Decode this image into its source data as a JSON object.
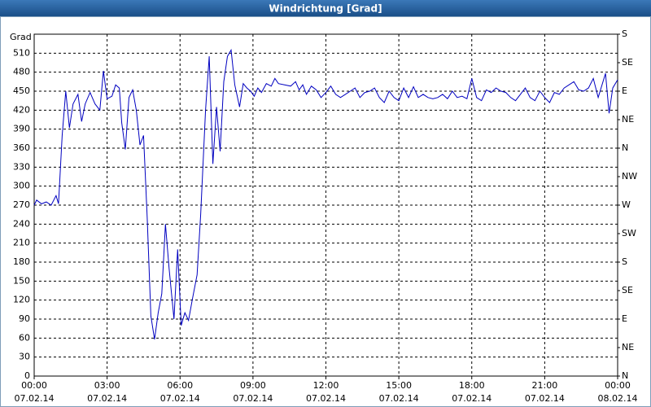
{
  "chart_data": {
    "type": "line",
    "title": "Windrichtung [Grad]",
    "y_label": "Grad",
    "x": [
      0,
      0.1,
      0.3,
      0.5,
      0.7,
      0.9,
      1.0,
      1.15,
      1.3,
      1.45,
      1.6,
      1.8,
      1.95,
      2.1,
      2.3,
      2.5,
      2.7,
      2.85,
      3.0,
      3.2,
      3.35,
      3.5,
      3.6,
      3.75,
      3.9,
      4.05,
      4.2,
      4.35,
      4.5,
      4.65,
      4.8,
      4.95,
      5.1,
      5.25,
      5.4,
      5.55,
      5.75,
      5.9,
      6.05,
      6.2,
      6.35,
      6.5,
      6.7,
      6.85,
      7.05,
      7.2,
      7.35,
      7.5,
      7.65,
      7.8,
      7.95,
      8.1,
      8.25,
      8.45,
      8.6,
      8.75,
      8.9,
      9.05,
      9.2,
      9.35,
      9.55,
      9.75,
      9.9,
      10.05,
      10.3,
      10.55,
      10.75,
      10.9,
      11.05,
      11.2,
      11.4,
      11.6,
      11.8,
      12.0,
      12.2,
      12.4,
      12.6,
      12.8,
      13.0,
      13.2,
      13.4,
      13.6,
      13.8,
      14.0,
      14.2,
      14.4,
      14.6,
      14.8,
      15.0,
      15.2,
      15.4,
      15.6,
      15.8,
      16.0,
      16.2,
      16.4,
      16.6,
      16.8,
      17.0,
      17.2,
      17.4,
      17.6,
      17.8,
      18.0,
      18.2,
      18.4,
      18.6,
      18.8,
      19.0,
      19.2,
      19.4,
      19.6,
      19.8,
      20.0,
      20.2,
      20.4,
      20.6,
      20.8,
      21.0,
      21.2,
      21.4,
      21.6,
      21.8,
      22.0,
      22.2,
      22.4,
      22.6,
      22.8,
      23.0,
      23.2,
      23.5,
      23.65,
      23.8,
      24.0
    ],
    "series": [
      {
        "name": "Windrichtung",
        "color": "#0000c0",
        "values": [
          270,
          278,
          272,
          275,
          270,
          285,
          272,
          380,
          450,
          392,
          430,
          445,
          402,
          430,
          448,
          430,
          420,
          482,
          438,
          442,
          460,
          455,
          400,
          358,
          440,
          452,
          420,
          365,
          380,
          250,
          95,
          58,
          100,
          130,
          240,
          170,
          90,
          200,
          80,
          100,
          88,
          120,
          160,
          255,
          420,
          505,
          335,
          425,
          355,
          465,
          505,
          515,
          460,
          425,
          462,
          455,
          450,
          442,
          455,
          448,
          462,
          458,
          470,
          462,
          460,
          458,
          465,
          452,
          460,
          445,
          458,
          452,
          440,
          448,
          458,
          445,
          440,
          445,
          450,
          455,
          440,
          448,
          450,
          455,
          440,
          432,
          450,
          440,
          435,
          455,
          440,
          457,
          440,
          445,
          440,
          438,
          440,
          445,
          438,
          450,
          440,
          442,
          438,
          470,
          440,
          435,
          452,
          448,
          455,
          450,
          448,
          440,
          435,
          445,
          455,
          440,
          435,
          450,
          440,
          432,
          448,
          445,
          455,
          460,
          465,
          452,
          450,
          455,
          470,
          440,
          478,
          415,
          455,
          468
        ]
      }
    ],
    "xlim": [
      0,
      24
    ],
    "xticks": [
      {
        "value": 0,
        "label": "00:00\n07.02.14"
      },
      {
        "value": 3,
        "label": "03:00\n07.02.14"
      },
      {
        "value": 6,
        "label": "06:00\n07.02.14"
      },
      {
        "value": 9,
        "label": "09:00\n07.02.14"
      },
      {
        "value": 12,
        "label": "12:00\n07.02.14"
      },
      {
        "value": 15,
        "label": "15:00\n07.02.14"
      },
      {
        "value": 18,
        "label": "18:00\n07.02.14"
      },
      {
        "value": 21,
        "label": "21:00\n07.02.14"
      },
      {
        "value": 24,
        "label": "00:00\n08.02.14"
      }
    ],
    "ylim": [
      0,
      540
    ],
    "yticks": [
      0,
      30,
      60,
      90,
      120,
      150,
      180,
      210,
      240,
      270,
      300,
      330,
      360,
      390,
      420,
      450,
      480,
      510
    ],
    "y2lim": [
      0,
      540
    ],
    "y2ticks": [
      {
        "value": 0,
        "label": "N"
      },
      {
        "value": 45,
        "label": "NE"
      },
      {
        "value": 90,
        "label": "E"
      },
      {
        "value": 135,
        "label": "SE"
      },
      {
        "value": 180,
        "label": "S"
      },
      {
        "value": 225,
        "label": "SW"
      },
      {
        "value": 270,
        "label": "W"
      },
      {
        "value": 315,
        "label": "NW"
      },
      {
        "value": 360,
        "label": "N"
      },
      {
        "value": 405,
        "label": "NE"
      },
      {
        "value": 450,
        "label": "E"
      },
      {
        "value": 495,
        "label": "SE"
      },
      {
        "value": 540,
        "label": "S"
      }
    ],
    "grid": true
  }
}
